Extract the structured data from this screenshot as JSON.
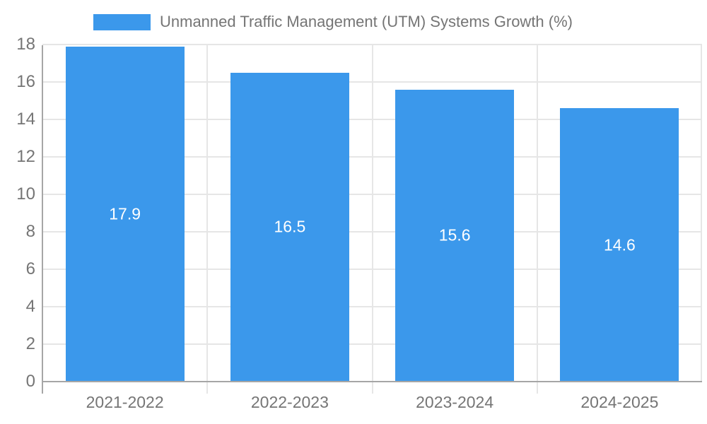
{
  "chart_data": {
    "type": "bar",
    "legend": {
      "label": "Unmanned Traffic Management (UTM) Systems Growth (%)",
      "position": "top"
    },
    "categories": [
      "2021-2022",
      "2022-2023",
      "2023-2024",
      "2024-2025"
    ],
    "series": [
      {
        "name": "Unmanned Traffic Management (UTM) Systems Growth (%)",
        "values": [
          17.9,
          16.5,
          15.6,
          14.6
        ],
        "data_labels": [
          "17.9",
          "16.5",
          "15.6",
          "14.6"
        ]
      }
    ],
    "xlabel": "",
    "ylabel": "",
    "ylim": [
      0,
      18
    ],
    "yticks": [
      "0",
      "2",
      "4",
      "6",
      "8",
      "10",
      "12",
      "14",
      "16",
      "18"
    ],
    "grid": true,
    "colors": {
      "bar": "#3b98eb",
      "gridline": "#e6e6e6",
      "axis_line": "#a6a6a6",
      "tick_label": "#757575",
      "legend_text": "#757575",
      "data_label": "#ffffff",
      "background": "#ffffff"
    }
  }
}
